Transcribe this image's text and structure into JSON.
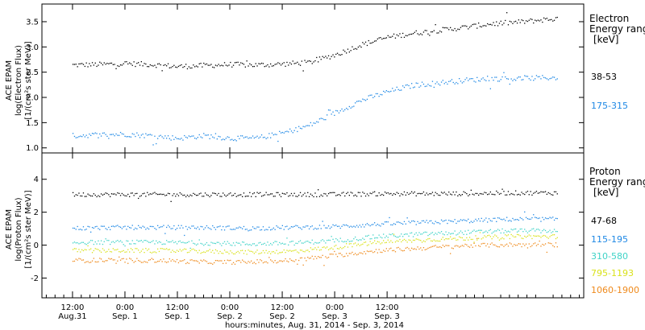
{
  "chart_data": [
    {
      "type": "scatter",
      "panel": "electron",
      "ylabel_lines": [
        "ACE EPAM",
        "log(Electron Flux)",
        "[1/(cm²s ster MeV)]"
      ],
      "ylim": [
        0.9,
        3.85
      ],
      "yticks": [
        1.0,
        1.5,
        2.0,
        2.5,
        3.0,
        3.5
      ],
      "ytick_labels": [
        "1.0",
        "1.5",
        "2.0",
        "2.5",
        "3.0",
        "3.5"
      ],
      "legend_title_lines": [
        "Electron",
        "Energy ranges",
        "[keV]"
      ],
      "series": [
        {
          "name": "38-53",
          "color": "#000000",
          "x": [
            0,
            6,
            12,
            18,
            24,
            30,
            36,
            42,
            48,
            54,
            60,
            66,
            72,
            78,
            84,
            90,
            96,
            102,
            108,
            111
          ],
          "y": [
            2.65,
            2.66,
            2.68,
            2.66,
            2.62,
            2.64,
            2.66,
            2.65,
            2.67,
            2.7,
            2.85,
            3.05,
            3.2,
            3.28,
            3.34,
            3.4,
            3.47,
            3.5,
            3.55,
            3.57
          ]
        },
        {
          "name": "175-315",
          "color": "#1e88e5",
          "x": [
            0,
            6,
            12,
            18,
            24,
            30,
            36,
            42,
            48,
            54,
            60,
            66,
            72,
            78,
            84,
            90,
            96,
            102,
            108,
            111
          ],
          "y": [
            1.25,
            1.27,
            1.28,
            1.25,
            1.2,
            1.25,
            1.2,
            1.2,
            1.3,
            1.45,
            1.7,
            1.95,
            2.12,
            2.25,
            2.3,
            2.35,
            2.38,
            2.38,
            2.4,
            2.4
          ]
        }
      ]
    },
    {
      "type": "scatter",
      "panel": "proton",
      "ylabel_lines": [
        "ACE EPAM",
        "log(Proton Flux)",
        "[1/(cm²s ster MeV)]"
      ],
      "ylim": [
        -3.2,
        5.6
      ],
      "yticks": [
        -2,
        0,
        2,
        4
      ],
      "ytick_labels": [
        "-2",
        "0",
        "2",
        "4"
      ],
      "legend_title_lines": [
        "Proton",
        "Energy ranges",
        "[keV]"
      ],
      "series": [
        {
          "name": "47-68",
          "color": "#000000",
          "x": [
            0,
            10,
            20,
            30,
            40,
            50,
            60,
            70,
            80,
            90,
            100,
            111
          ],
          "y": [
            3.1,
            3.1,
            3.1,
            3.1,
            3.1,
            3.1,
            3.1,
            3.15,
            3.15,
            3.15,
            3.2,
            3.2
          ]
        },
        {
          "name": "115-195",
          "color": "#1e88e5",
          "x": [
            0,
            10,
            20,
            30,
            40,
            50,
            60,
            70,
            80,
            90,
            100,
            111
          ],
          "y": [
            1.05,
            1.1,
            1.1,
            1.1,
            1.05,
            1.1,
            1.15,
            1.3,
            1.4,
            1.5,
            1.6,
            1.6
          ]
        },
        {
          "name": "310-580",
          "color": "#3fd3c7",
          "x": [
            0,
            10,
            20,
            30,
            40,
            50,
            60,
            70,
            80,
            90,
            100,
            111
          ],
          "y": [
            0.2,
            0.2,
            0.2,
            0.15,
            0.1,
            0.15,
            0.3,
            0.55,
            0.7,
            0.8,
            0.9,
            0.9
          ]
        },
        {
          "name": "795-1193",
          "color": "#d9e21a",
          "x": [
            0,
            10,
            20,
            30,
            40,
            50,
            60,
            70,
            80,
            90,
            100,
            111
          ],
          "y": [
            -0.3,
            -0.3,
            -0.3,
            -0.35,
            -0.4,
            -0.35,
            -0.1,
            0.2,
            0.35,
            0.45,
            0.55,
            0.55
          ]
        },
        {
          "name": "1060-1900",
          "color": "#ef8a1c",
          "x": [
            0,
            10,
            20,
            30,
            40,
            50,
            60,
            70,
            80,
            90,
            100,
            111
          ],
          "y": [
            -0.9,
            -0.9,
            -0.9,
            -1.0,
            -1.0,
            -0.9,
            -0.6,
            -0.3,
            -0.15,
            0.0,
            0.05,
            0.05
          ]
        }
      ]
    }
  ],
  "xaxis": {
    "title": "hours:minutes, Aug. 31, 2014 - Sep.  3, 2014",
    "xlim": [
      -7,
      117
    ],
    "ticks": [
      {
        "x": 0,
        "line1": "12:00",
        "line2": "Aug.31"
      },
      {
        "x": 12,
        "line1": "0:00",
        "line2": "Sep. 1"
      },
      {
        "x": 24,
        "line1": "12:00",
        "line2": "Sep. 1"
      },
      {
        "x": 36,
        "line1": "0:00",
        "line2": "Sep. 2"
      },
      {
        "x": 48,
        "line1": "12:00",
        "line2": "Sep. 2"
      },
      {
        "x": 60,
        "line1": "0:00",
        "line2": "Sep. 3"
      },
      {
        "x": 72,
        "line1": "12:00",
        "line2": "Sep. 3"
      }
    ]
  }
}
